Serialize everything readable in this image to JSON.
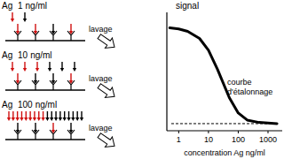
{
  "panels": [
    {
      "label": "Ag",
      "concentration": 1,
      "unit": "ng/ml",
      "step": "lavage"
    },
    {
      "label": "Ag",
      "concentration": 10,
      "unit": "ng/ml",
      "step": "lavage"
    },
    {
      "label": "Ag",
      "concentration": 100,
      "unit": "ng/ml",
      "step": "lavage"
    }
  ],
  "chart_data": {
    "type": "line",
    "ylabel": "signal",
    "xlabel": "concentration Ag ng/ml",
    "annotation": "courbe d'étalonnage",
    "x": [
      0.5,
      1,
      2,
      5,
      10,
      20,
      50,
      100,
      200,
      500,
      1000,
      2000
    ],
    "values": [
      87,
      86,
      84,
      78,
      68,
      52,
      28,
      15,
      9,
      7,
      6.5,
      6
    ],
    "xlim": [
      0.4,
      3000
    ],
    "ylim": [
      0,
      100
    ],
    "xticks": [
      1,
      10,
      100,
      1000
    ],
    "log": "x",
    "tick_labels": "x",
    "color": "#000000",
    "line_style": "solid",
    "baseline": 6
  }
}
